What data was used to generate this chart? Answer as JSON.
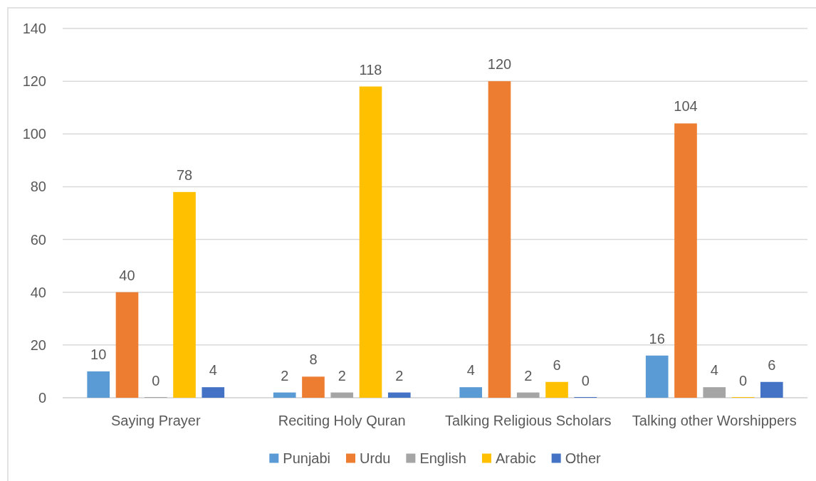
{
  "chart_data": {
    "type": "bar",
    "categories": [
      "Saying Prayer",
      "Reciting Holy Quran",
      "Talking Religious Scholars",
      "Talking other Worshippers"
    ],
    "series": [
      {
        "name": "Punjabi",
        "color": "#5b9bd5",
        "values": [
          10,
          2,
          4,
          16
        ]
      },
      {
        "name": "Urdu",
        "color": "#ed7d31",
        "values": [
          40,
          8,
          120,
          104
        ]
      },
      {
        "name": "English",
        "color": "#a5a5a5",
        "values": [
          0,
          2,
          2,
          4
        ]
      },
      {
        "name": "Arabic",
        "color": "#ffc000",
        "values": [
          78,
          118,
          6,
          0
        ]
      },
      {
        "name": "Other",
        "color": "#4472c4",
        "values": [
          4,
          2,
          0,
          6
        ]
      }
    ],
    "ylim": [
      0,
      140
    ],
    "yticks": [
      0,
      20,
      40,
      60,
      80,
      100,
      120,
      140
    ],
    "grid": "y",
    "data_labels": true,
    "legend": "bottom"
  }
}
